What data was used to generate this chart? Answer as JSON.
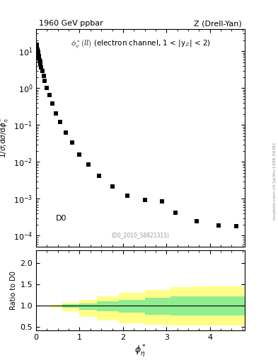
{
  "title_left": "1960 GeV ppbar",
  "title_right": "Z (Drell-Yan)",
  "annotation": "$\\phi^*_{\\eta}(ll)$ (electron channel, 1 < |y$_Z$| < 2)",
  "label_id": "(D0_2010_S8821313)",
  "data_label": "D0",
  "ylabel_main": "1/$\\sigma$;d$\\sigma$/d$\\phi^*_{\\eta}$",
  "ylabel_ratio": "Ratio to D0",
  "xlabel": "$\\phi^*_{\\eta}$",
  "xlim": [
    0,
    4.8
  ],
  "ylim_main": [
    5e-05,
    40
  ],
  "ylim_ratio": [
    0.42,
    2.3
  ],
  "scatter_x": [
    0.01,
    0.02,
    0.03,
    0.04,
    0.05,
    0.06,
    0.07,
    0.08,
    0.09,
    0.1,
    0.12,
    0.14,
    0.17,
    0.2,
    0.25,
    0.3,
    0.37,
    0.45,
    0.55,
    0.68,
    0.83,
    1.0,
    1.2,
    1.45,
    1.75,
    2.1,
    2.5,
    2.9,
    3.2,
    3.7,
    4.2,
    4.6
  ],
  "scatter_y": [
    15.0,
    13.0,
    11.0,
    9.5,
    8.5,
    7.5,
    6.5,
    5.8,
    5.2,
    4.6,
    3.7,
    3.0,
    2.2,
    1.6,
    1.0,
    0.65,
    0.38,
    0.21,
    0.12,
    0.063,
    0.033,
    0.016,
    0.0085,
    0.0042,
    0.0022,
    0.0012,
    0.00095,
    0.00085,
    0.00042,
    0.00025,
    0.00019,
    0.00018
  ],
  "ratio_band_edges": [
    0.0,
    0.3,
    0.6,
    1.0,
    1.4,
    1.9,
    2.5,
    3.1,
    3.6,
    4.1,
    4.8
  ],
  "green_upper": [
    1.0,
    1.01,
    1.03,
    1.06,
    1.1,
    1.14,
    1.18,
    1.22,
    1.22,
    1.22
  ],
  "green_lower": [
    1.0,
    0.99,
    0.96,
    0.91,
    0.87,
    0.83,
    0.79,
    0.77,
    0.77,
    0.77
  ],
  "yellow_upper": [
    1.0,
    1.02,
    1.07,
    1.14,
    1.22,
    1.3,
    1.37,
    1.43,
    1.45,
    1.45
  ],
  "yellow_lower": [
    1.0,
    0.96,
    0.87,
    0.74,
    0.65,
    0.59,
    0.55,
    0.54,
    0.54,
    0.54
  ],
  "right_axis_label": "mcplots.cern.ch [arXiv:1306.3436]",
  "marker_color": "black",
  "marker_size": 18,
  "green_color": "#90EE90",
  "yellow_color": "#FFFF88",
  "bg_color": "#ffffff"
}
